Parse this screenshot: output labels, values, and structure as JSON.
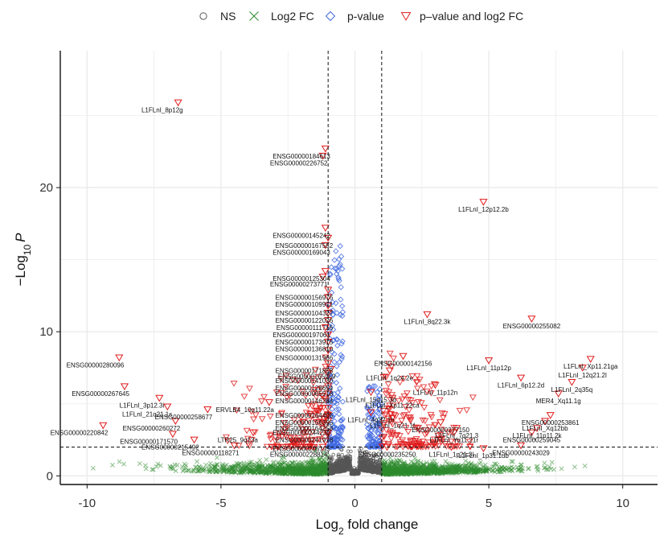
{
  "chart_data": {
    "type": "scatter",
    "title": "",
    "xlabel": "Log2 fold change",
    "ylabel": "-Log10 P",
    "xlim": [
      -11,
      11.3
    ],
    "ylim": [
      -0.6,
      29.5
    ],
    "xticks": [
      -10,
      -5,
      0,
      5,
      10
    ],
    "yticks": [
      0,
      10,
      20
    ],
    "xtick_labels": [
      "-10",
      "-5",
      "0",
      "5",
      "10"
    ],
    "ytick_labels": [
      "0",
      "10",
      "20"
    ],
    "fc_cutoff": 1,
    "p_cutoff_y": 2,
    "grid": true,
    "legend_position": "top",
    "legend": [
      {
        "key": "ns",
        "label": "NS",
        "color": "#555555",
        "symbol": "circle"
      },
      {
        "key": "fc",
        "label": "Log2 FC",
        "color": "#2e8b2e",
        "symbol": "cross"
      },
      {
        "key": "p",
        "label": "p-value",
        "color": "#4169e1",
        "symbol": "diamond"
      },
      {
        "key": "both",
        "label": "p–value and log2 FC",
        "color": "#e01b1b",
        "symbol": "triangle-down"
      }
    ],
    "labeled_points": [
      {
        "label": "L1FLnI_8p12g",
        "x": -6.6,
        "y": 25.9
      },
      {
        "label": "ENSG00000184613",
        "x": -1.1,
        "y": 22.7
      },
      {
        "label": "ENSG00000226752",
        "x": -1.2,
        "y": 22.2
      },
      {
        "label": "L1FLnI_12p12.2b",
        "x": 4.8,
        "y": 19.0
      },
      {
        "label": "ENSG00000145242",
        "x": -1.1,
        "y": 17.2
      },
      {
        "label": "ENSG00000167552",
        "x": -1.0,
        "y": 16.5
      },
      {
        "label": "ENSG00000169043",
        "x": -1.1,
        "y": 16.0
      },
      {
        "label": "ENSG00000125304",
        "x": -1.1,
        "y": 14.2
      },
      {
        "label": "ENSG00000273771",
        "x": -1.2,
        "y": 13.8
      },
      {
        "label": "ENSG00000156976",
        "x": -1.0,
        "y": 12.9
      },
      {
        "label": "ENSG00000109971",
        "x": -1.0,
        "y": 12.4
      },
      {
        "label": "ENSG00000104327",
        "x": -1.0,
        "y": 11.8
      },
      {
        "label": "ENSG00000122026",
        "x": -1.0,
        "y": 11.3
      },
      {
        "label": "L1FLnI_8q22.3k",
        "x": 2.7,
        "y": 11.2
      },
      {
        "label": "ENSG00000255082",
        "x": 6.6,
        "y": 10.9
      },
      {
        "label": "ENSG00000111716",
        "x": -1.0,
        "y": 10.8
      },
      {
        "label": "ENSG00000197061",
        "x": -1.1,
        "y": 10.3
      },
      {
        "label": "ENSG00000173915",
        "x": -1.0,
        "y": 9.8
      },
      {
        "label": "ENSG00000136810",
        "x": -1.0,
        "y": 9.3
      },
      {
        "label": "ENSG00000131966",
        "x": -1.0,
        "y": 8.7
      },
      {
        "label": "ENSG00000142156",
        "x": 1.8,
        "y": 8.3
      },
      {
        "label": "ENSG00000280096",
        "x": -8.8,
        "y": 8.2
      },
      {
        "label": "L1FLnI_11p12p",
        "x": 5.0,
        "y": 8.0
      },
      {
        "label": "L1FLnI_Xp11.21ga",
        "x": 8.8,
        "y": 8.1
      },
      {
        "label": "ENSG00000171858",
        "x": -1.0,
        "y": 7.8
      },
      {
        "label": "ENSG00000165959",
        "x": -0.9,
        "y": 7.4
      },
      {
        "label": "L1FLnI_12q21.2l",
        "x": 8.5,
        "y": 7.5
      },
      {
        "label": "ENSG00000141030",
        "x": -1.0,
        "y": 7.1
      },
      {
        "label": "L1FLnI_1q24.2e",
        "x": 1.3,
        "y": 7.3
      },
      {
        "label": "L1FLnI_6p12.2d",
        "x": 6.2,
        "y": 6.8
      },
      {
        "label": "ENSG00000128654",
        "x": -1.0,
        "y": 6.6
      },
      {
        "label": "L1FLnI_2q35q",
        "x": 8.1,
        "y": 6.5
      },
      {
        "label": "ENSG00000267645",
        "x": -8.6,
        "y": 6.2
      },
      {
        "label": "ENSG00000065518",
        "x": -1.0,
        "y": 6.2
      },
      {
        "label": "L1FLnI_11p12n",
        "x": 3.0,
        "y": 6.3
      },
      {
        "label": "MER4_Xq11.1g",
        "x": 7.6,
        "y": 5.7
      },
      {
        "label": "ENSG00000146284",
        "x": -1.0,
        "y": 5.7
      },
      {
        "label": "L1FLnI_15q15.3d",
        "x": 0.6,
        "y": 5.8
      },
      {
        "label": "L1FLnI_3p12.3i",
        "x": -7.3,
        "y": 5.4
      },
      {
        "label": "L1FLnI_Xp11.22ca",
        "x": 1.4,
        "y": 5.4
      },
      {
        "label": "ERVLB4_10q11.22a",
        "x": -3.2,
        "y": 5.1
      },
      {
        "label": "L1FLnI_21q21.1s",
        "x": -7.0,
        "y": 4.8
      },
      {
        "label": "ENSG00000164405",
        "x": -1.0,
        "y": 4.7
      },
      {
        "label": "ENSG00000258677",
        "x": -5.5,
        "y": 4.6
      },
      {
        "label": "L1FLnI_4q32.1h",
        "x": 0.6,
        "y": 4.4
      },
      {
        "label": "ENSG00000156395",
        "x": -1.0,
        "y": 4.2
      },
      {
        "label": "ENSG00000253861",
        "x": 7.3,
        "y": 4.2
      },
      {
        "label": "L1FLnI_1q21.1f",
        "x": 1.4,
        "y": 4.0
      },
      {
        "label": "ENSG00000164258",
        "x": -1.0,
        "y": 3.8
      },
      {
        "label": "ENSG00000260272",
        "x": -6.7,
        "y": 3.8
      },
      {
        "label": "L1FLnI_Xq12bb",
        "x": 7.1,
        "y": 3.8
      },
      {
        "label": "ENSG00000277150",
        "x": 3.2,
        "y": 3.7
      },
      {
        "label": "ENSG00000244230",
        "x": -1.1,
        "y": 3.5
      },
      {
        "label": "L1FLnI_11p11.2k",
        "x": 6.8,
        "y": 3.3
      },
      {
        "label": "ENSG00000220842",
        "x": -9.4,
        "y": 3.5
      },
      {
        "label": "L1FLnI_7q21.3",
        "x": 3.8,
        "y": 3.3
      },
      {
        "label": "ENSG00000171570",
        "x": -6.8,
        "y": 2.9
      },
      {
        "label": "LTR25_9q13a",
        "x": -3.8,
        "y": 3.0
      },
      {
        "label": "ENSG00000241978",
        "x": -1.0,
        "y": 3.0
      },
      {
        "label": "L1FLnI_Yq11.21r",
        "x": 3.7,
        "y": 3.0
      },
      {
        "label": "ENSG00000259045",
        "x": 6.6,
        "y": 3.0
      },
      {
        "label": "ENSG00000215492",
        "x": -6.0,
        "y": 2.5
      },
      {
        "label": "ENSG00000206195",
        "x": -1.1,
        "y": 2.4
      },
      {
        "label": "ENSG00000243029",
        "x": 6.2,
        "y": 2.1
      },
      {
        "label": "ENSG00000118271",
        "x": -4.5,
        "y": 2.1
      },
      {
        "label": "ENSG00000228814",
        "x": -1.2,
        "y": 2.0
      },
      {
        "label": "ENSG00000235250",
        "x": 1.2,
        "y": 2.0
      },
      {
        "label": "L1FLnI_1p21.3l",
        "x": 3.6,
        "y": 2.0
      },
      {
        "label": "L1FLnI_1p31.1ub",
        "x": 4.8,
        "y": 1.9
      }
    ],
    "visible_point_label_texts": [
      "L1FLnI_8p12g",
      "ENSG00000184613",
      "ENSG00000226752",
      "L1FLnI_12p12.2b",
      "ENSG00000145242",
      "ENSG00000167552",
      "ENSG00000169043",
      "ENSG00000125304",
      "ENSG00000273771",
      "ENSG00000156976",
      "ENSG00000109971",
      "ENSG00000104327",
      "ENSG00000122026",
      "L1FLnI_8q22.3k",
      "ENSG00000255082",
      "ENSG00000111716",
      "ENSG00000197061",
      "ENSG00000173915",
      "ENSG00000136810",
      "ENSG00000131966",
      "ENSG00000142156",
      "ENSG00000280096",
      "L1FLnI_11p12p",
      "L1FLnI_Xp11.21ga",
      "ENSG00000171858",
      "ENSG00000165959",
      "L1FLnI_12q21.2l",
      "ENSG00000141030",
      "L1FLnI_1q24.2e",
      "L1FLnI_6p12.2d",
      "ENSG00000128654",
      "L1FLnI_2q35q",
      "ENSG00000267645",
      "ENSG00000065518",
      "L1FLnI_11p12n",
      "MER4_Xq11.1g",
      "ENSG00000146284",
      "L1FLnI_15q15.3d",
      "L1FLnI_3p12.3i",
      "L1FLnI_Xp11.22ca",
      "ERVLB4_10q11.22a",
      "L1FLnI_21q21.1s",
      "ENSG00000164405",
      "ENSG00000258677",
      "L1FLnI_4q32.1h",
      "ENSG00000156395",
      "ENSG00000253861",
      "L1FLnI_1q21.1f",
      "ENSG00000164258",
      "ENSG00000260272",
      "L1FLnI_Xq12bb",
      "ENSG00000277150",
      "ENSG00000244230",
      "L1FLnI_11p11.2k",
      "ENSG00000220842",
      "L1FLnI_7q21.3",
      "ENSG00000171570",
      "LTR25_9q13a",
      "ENSG00000241978",
      "L1FLnI_Yq11.21r",
      "ENSG00000259045",
      "ENSG00000215492",
      "ENSG00000206195",
      "ENSG00000243029",
      "ENSG00000118271",
      "ENSG00000228814",
      "ENSG00000235250",
      "L1FLnI_1p21.3l",
      "L1FLnI_1p31.1ub"
    ]
  }
}
